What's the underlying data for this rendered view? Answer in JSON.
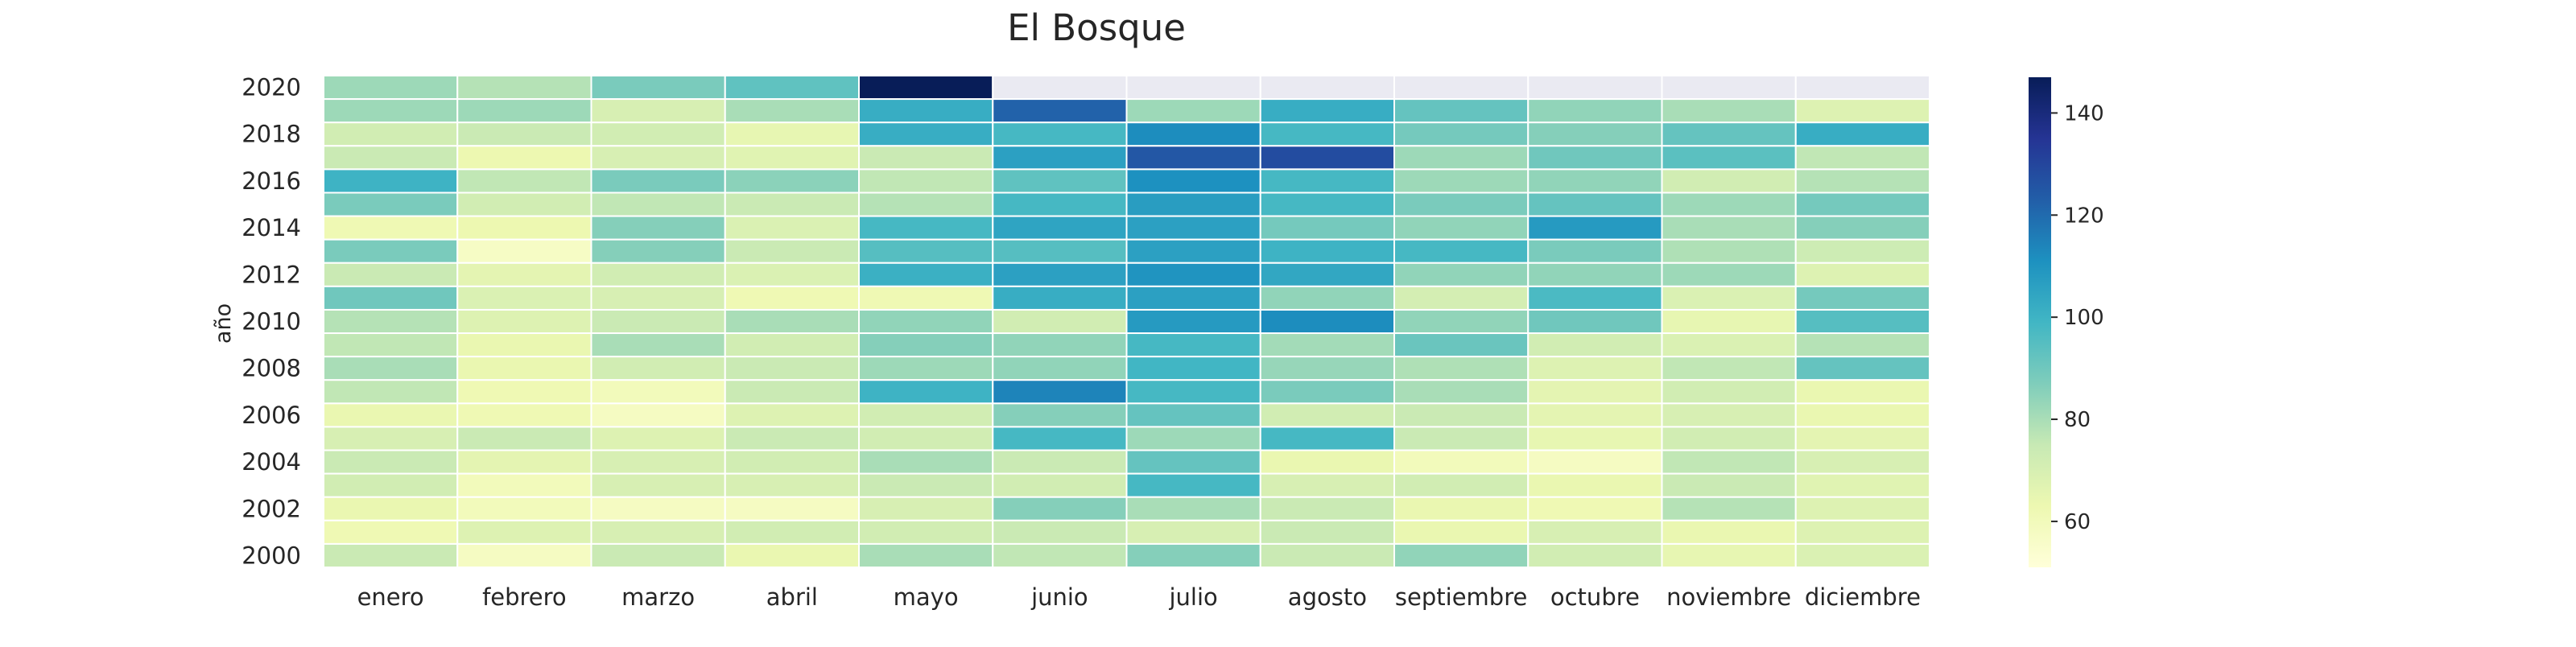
{
  "chart_data": {
    "type": "heatmap",
    "title": "El Bosque",
    "xlabel": "",
    "ylabel": "año",
    "columns": [
      "enero",
      "febrero",
      "marzo",
      "abril",
      "mayo",
      "junio",
      "julio",
      "agosto",
      "septiembre",
      "octubre",
      "noviembre",
      "diciembre"
    ],
    "rows": [
      2020,
      2019,
      2018,
      2017,
      2016,
      2015,
      2014,
      2013,
      2012,
      2011,
      2010,
      2009,
      2008,
      2007,
      2006,
      2005,
      2004,
      2003,
      2002,
      2001,
      2000
    ],
    "y_tick_labels": [
      2020,
      2018,
      2016,
      2014,
      2012,
      2010,
      2008,
      2006,
      2004,
      2002,
      2000
    ],
    "values": [
      [
        82,
        78,
        88,
        93,
        147,
        null,
        null,
        null,
        null,
        null,
        null,
        null
      ],
      [
        82,
        82,
        70,
        80,
        102,
        122,
        82,
        102,
        92,
        84,
        80,
        68
      ],
      [
        72,
        74,
        72,
        65,
        102,
        98,
        112,
        98,
        89,
        86,
        92,
        102
      ],
      [
        74,
        63,
        70,
        67,
        74,
        106,
        125,
        128,
        82,
        90,
        94,
        76
      ],
      [
        100,
        76,
        88,
        85,
        76,
        93,
        111,
        98,
        82,
        84,
        72,
        78
      ],
      [
        88,
        72,
        76,
        74,
        78,
        98,
        107,
        98,
        88,
        92,
        82,
        89
      ],
      [
        62,
        63,
        86,
        69,
        98,
        105,
        106,
        89,
        84,
        108,
        80,
        86
      ],
      [
        88,
        57,
        86,
        74,
        95,
        95,
        106,
        100,
        98,
        88,
        79,
        73
      ],
      [
        74,
        66,
        72,
        69,
        101,
        106,
        110,
        104,
        84,
        84,
        82,
        68
      ],
      [
        90,
        69,
        70,
        62,
        62,
        102,
        106,
        84,
        71,
        97,
        69,
        89
      ],
      [
        78,
        68,
        74,
        80,
        84,
        72,
        108,
        112,
        84,
        90,
        65,
        95
      ],
      [
        76,
        64,
        80,
        72,
        86,
        84,
        98,
        81,
        91,
        72,
        69,
        78
      ],
      [
        80,
        64,
        72,
        74,
        82,
        84,
        99,
        83,
        79,
        68,
        76,
        92
      ],
      [
        76,
        62,
        60,
        74,
        100,
        114,
        98,
        88,
        80,
        66,
        72,
        64
      ],
      [
        64,
        62,
        58,
        68,
        72,
        86,
        92,
        72,
        74,
        66,
        70,
        64
      ],
      [
        70,
        74,
        68,
        74,
        72,
        98,
        82,
        98,
        74,
        65,
        72,
        66
      ],
      [
        74,
        66,
        70,
        72,
        80,
        74,
        92,
        64,
        60,
        58,
        76,
        70
      ],
      [
        72,
        60,
        70,
        70,
        74,
        72,
        98,
        70,
        72,
        64,
        74,
        67
      ],
      [
        64,
        60,
        58,
        58,
        70,
        86,
        80,
        74,
        64,
        62,
        78,
        68
      ],
      [
        62,
        68,
        70,
        72,
        72,
        74,
        70,
        74,
        64,
        70,
        64,
        68
      ],
      [
        74,
        58,
        74,
        64,
        80,
        76,
        86,
        74,
        84,
        72,
        65,
        69
      ]
    ],
    "missing_color": "#eaeaf2",
    "colorscale": [
      "#ffffd9",
      "#edf8b1",
      "#c7e9b4",
      "#7fcdbb",
      "#41b6c4",
      "#1d91c0",
      "#225ea8",
      "#253494",
      "#081d58"
    ],
    "value_range": [
      51,
      147
    ],
    "colorbar_ticks": [
      60,
      80,
      100,
      120,
      140
    ],
    "grid": false
  }
}
